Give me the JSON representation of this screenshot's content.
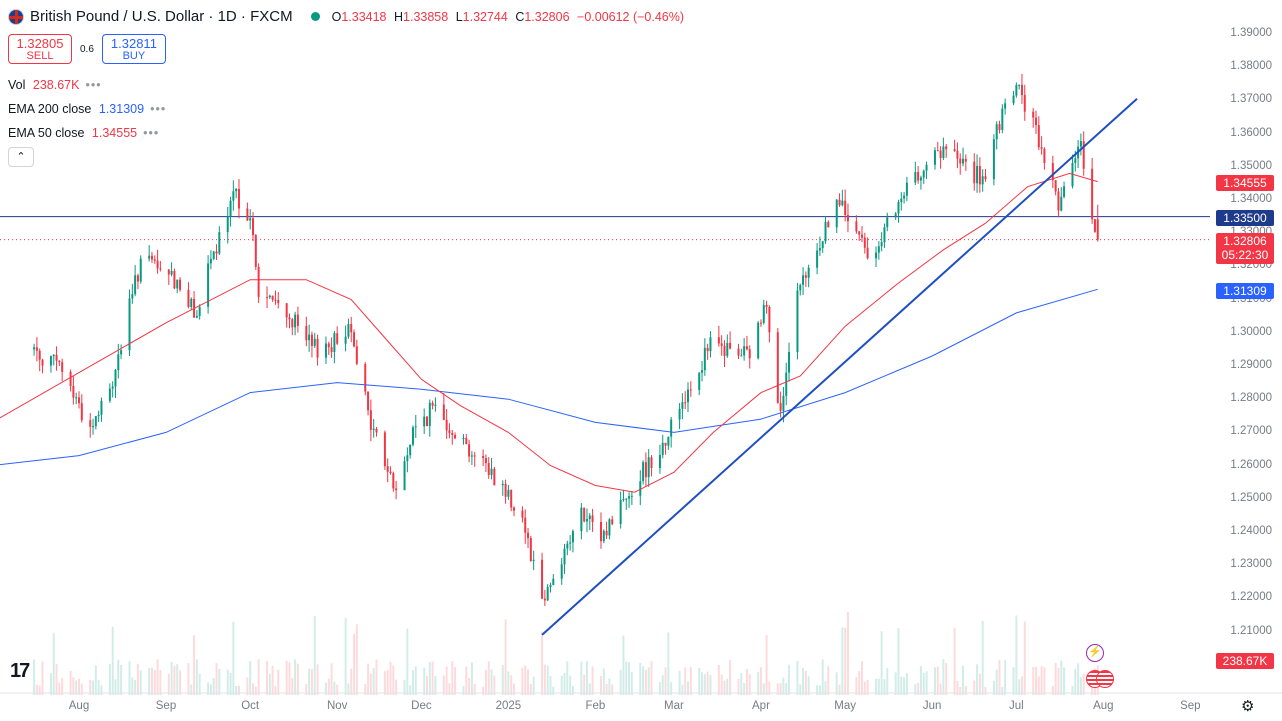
{
  "header": {
    "title": "British Pound / U.S. Dollar · 1D · FXCM",
    "ohlc": [
      {
        "k": "O",
        "v": "1.33418"
      },
      {
        "k": "H",
        "v": "1.33858"
      },
      {
        "k": "L",
        "v": "1.32744"
      },
      {
        "k": "C",
        "v": "1.32806"
      },
      {
        "k": "",
        "v": "−0.00612 (−0.46%)"
      }
    ]
  },
  "trade": {
    "sell_price": "1.32805",
    "sell_label": "SELL",
    "spread": "0.6",
    "buy_price": "1.32811",
    "buy_label": "BUY"
  },
  "indicators": [
    {
      "name": "Vol",
      "value": "238.67K",
      "color": "#f23645"
    },
    {
      "name": "EMA 200 close",
      "value": "1.31309",
      "color": "#2962ff"
    },
    {
      "name": "EMA 50 close",
      "value": "1.34555",
      "color": "#f23645"
    }
  ],
  "colors": {
    "up": "#089981",
    "down": "#f23645",
    "ema50": "#f23645",
    "ema200": "#2962ff",
    "trendline": "#1e4fc2",
    "hline": "#1e3a8a"
  },
  "chart_data": {
    "type": "candlestick",
    "symbol": "GBPUSD",
    "timeframe": "1D",
    "y_range": [
      1.2,
      1.395
    ],
    "y_ticks": [
      "1.39000",
      "1.38000",
      "1.37000",
      "1.36000",
      "1.35000",
      "1.34000",
      "1.33000",
      "1.32000",
      "1.31000",
      "1.30000",
      "1.29000",
      "1.28000",
      "1.27000",
      "1.26000",
      "1.25000",
      "1.24000",
      "1.23000",
      "1.22000",
      "1.21000"
    ],
    "x_ticks": [
      "Aug",
      "Sep",
      "Oct",
      "Nov",
      "Dec",
      "2025",
      "Feb",
      "Mar",
      "Apr",
      "May",
      "Jun",
      "Jul",
      "Aug",
      "Sep"
    ],
    "close_path": [
      [
        "2024-07-16",
        1.295
      ],
      [
        "2024-07-26",
        1.289
      ],
      [
        "2024-08-05",
        1.271
      ],
      [
        "2024-08-12",
        1.282
      ],
      [
        "2024-08-23",
        1.322
      ],
      [
        "2024-09-06",
        1.315
      ],
      [
        "2024-09-11",
        1.305
      ],
      [
        "2024-09-20",
        1.328
      ],
      [
        "2024-09-26",
        1.342
      ],
      [
        "2024-10-01",
        1.335
      ],
      [
        "2024-10-04",
        1.312
      ],
      [
        "2024-10-14",
        1.306
      ],
      [
        "2024-10-23",
        1.295
      ],
      [
        "2024-10-31",
        1.297
      ],
      [
        "2024-11-06",
        1.303
      ],
      [
        "2024-11-12",
        1.275
      ],
      [
        "2024-11-22",
        1.252
      ],
      [
        "2024-11-28",
        1.27
      ],
      [
        "2024-12-06",
        1.278
      ],
      [
        "2024-12-18",
        1.265
      ],
      [
        "2024-12-27",
        1.257
      ],
      [
        "2025-01-06",
        1.245
      ],
      [
        "2025-01-13",
        1.22
      ],
      [
        "2025-01-16",
        1.225
      ],
      [
        "2025-01-27",
        1.245
      ],
      [
        "2025-02-03",
        1.238
      ],
      [
        "2025-02-11",
        1.25
      ],
      [
        "2025-02-26",
        1.268
      ],
      [
        "2025-03-04",
        1.28
      ],
      [
        "2025-03-14",
        1.296
      ],
      [
        "2025-03-28",
        1.293
      ],
      [
        "2025-04-03",
        1.31
      ],
      [
        "2025-04-08",
        1.275
      ],
      [
        "2025-04-14",
        1.31
      ],
      [
        "2025-04-28",
        1.34
      ],
      [
        "2025-05-09",
        1.324
      ],
      [
        "2025-05-15",
        1.33
      ],
      [
        "2025-05-28",
        1.35
      ],
      [
        "2025-06-06",
        1.355
      ],
      [
        "2025-06-20",
        1.345
      ],
      [
        "2025-06-24",
        1.36
      ],
      [
        "2025-07-01",
        1.375
      ],
      [
        "2025-07-07",
        1.362
      ],
      [
        "2025-07-16",
        1.34
      ],
      [
        "2025-07-24",
        1.355
      ],
      [
        "2025-07-30",
        1.328
      ]
    ],
    "last": {
      "open": 1.33418,
      "high": 1.33858,
      "low": 1.32744,
      "close": 1.32806,
      "date": "2025-07-30"
    },
    "horizontal_line": {
      "value": 1.335,
      "label": "1.33500"
    },
    "trendline": {
      "start": [
        "2025-01-13",
        1.209
      ],
      "end": [
        "2025-08-13",
        1.3705
      ]
    },
    "ema50": {
      "name": "EMA 50 close",
      "last": 1.34555,
      "points": [
        [
          "2024-07-01",
          1.273
        ],
        [
          "2024-08-01",
          1.288
        ],
        [
          "2024-09-01",
          1.303
        ],
        [
          "2024-10-01",
          1.316
        ],
        [
          "2024-10-21",
          1.316
        ],
        [
          "2024-11-06",
          1.31
        ],
        [
          "2024-12-01",
          1.286
        ],
        [
          "2024-12-15",
          1.278
        ],
        [
          "2025-01-01",
          1.27
        ],
        [
          "2025-01-16",
          1.26
        ],
        [
          "2025-02-01",
          1.254
        ],
        [
          "2025-02-15",
          1.252
        ],
        [
          "2025-03-01",
          1.258
        ],
        [
          "2025-03-15",
          1.27
        ],
        [
          "2025-04-01",
          1.282
        ],
        [
          "2025-04-15",
          1.287
        ],
        [
          "2025-05-01",
          1.302
        ],
        [
          "2025-05-20",
          1.315
        ],
        [
          "2025-06-05",
          1.325
        ],
        [
          "2025-06-20",
          1.333
        ],
        [
          "2025-07-05",
          1.344
        ],
        [
          "2025-07-20",
          1.348
        ],
        [
          "2025-07-30",
          1.34555
        ]
      ]
    },
    "ema200": {
      "name": "EMA 200 close",
      "last": 1.31309,
      "points": [
        [
          "2024-07-01",
          1.26
        ],
        [
          "2024-08-01",
          1.263
        ],
        [
          "2024-09-01",
          1.27
        ],
        [
          "2024-10-01",
          1.282
        ],
        [
          "2024-11-01",
          1.285
        ],
        [
          "2024-12-01",
          1.283
        ],
        [
          "2025-01-01",
          1.28
        ],
        [
          "2025-02-01",
          1.273
        ],
        [
          "2025-03-01",
          1.27
        ],
        [
          "2025-04-01",
          1.274
        ],
        [
          "2025-05-01",
          1.282
        ],
        [
          "2025-06-01",
          1.293
        ],
        [
          "2025-07-01",
          1.306
        ],
        [
          "2025-07-30",
          1.31309
        ]
      ]
    },
    "volume": {
      "last": "238.67K"
    },
    "price_tags": {
      "ema50": "1.34555",
      "hline": "1.33500",
      "last": "1.32806",
      "countdown": "05:22:30",
      "ema200": "1.31309",
      "volume": "238.67K"
    }
  },
  "footer": {
    "logo": "17",
    "gear": "⚙",
    "bolt": "⚡",
    "collapse": "⌃"
  }
}
